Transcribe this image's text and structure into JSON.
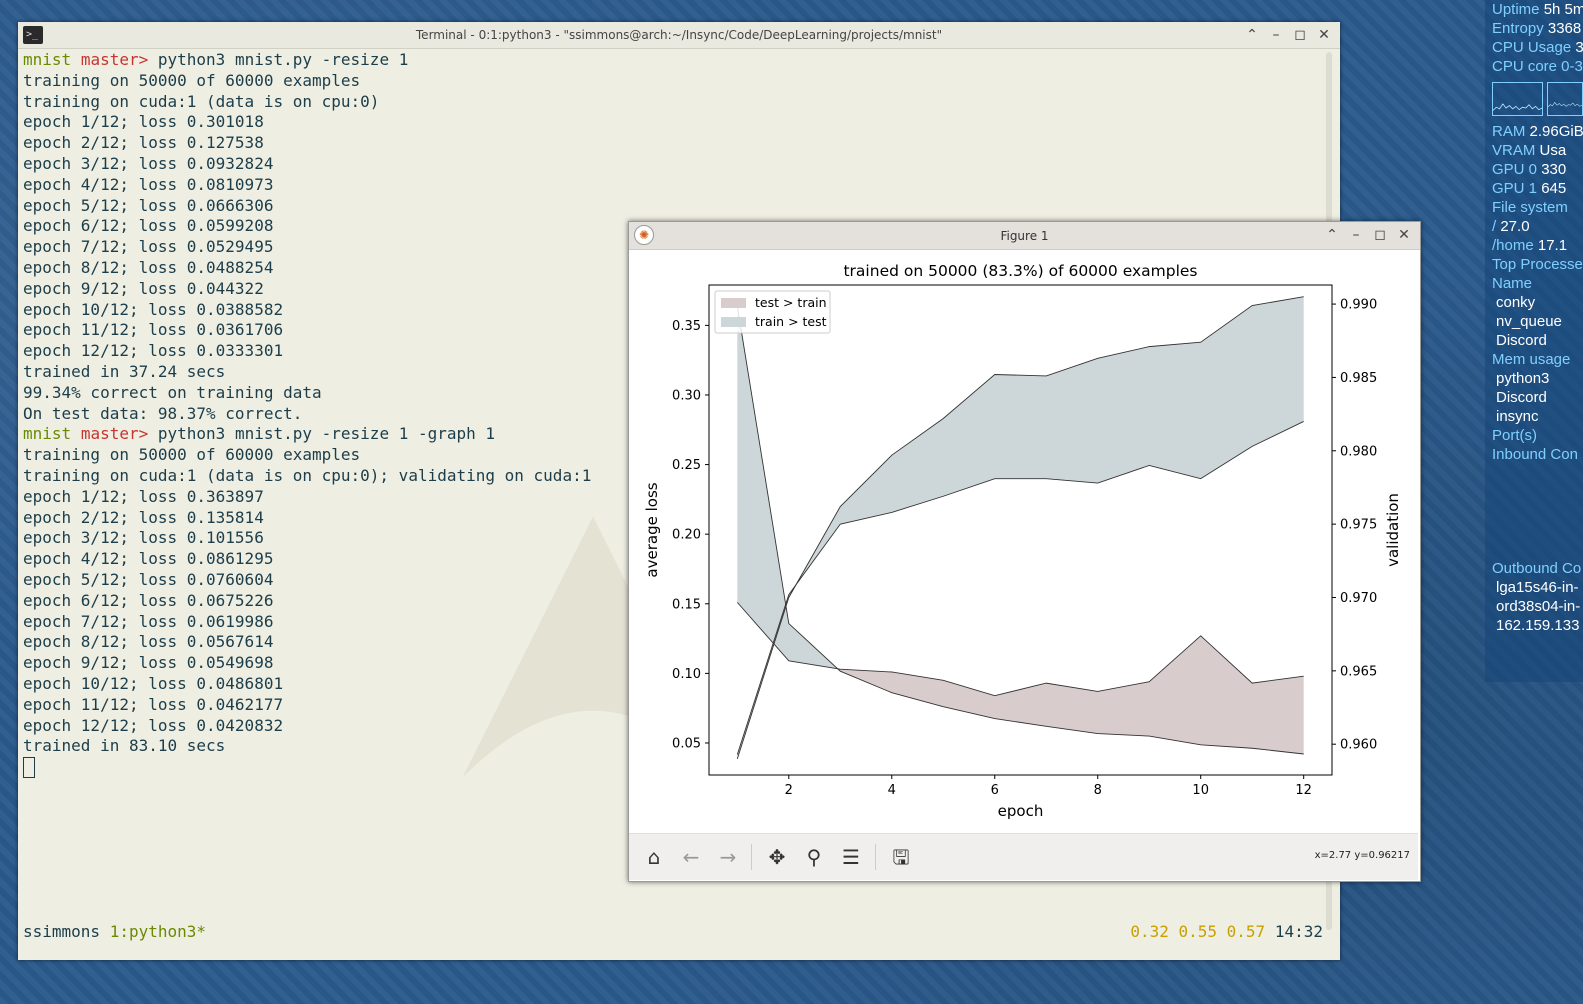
{
  "terminal": {
    "title": "Terminal - 0:1:python3 - \"ssimmons@arch:~/Insync/Code/DeepLearning/projects/mnist\"",
    "icon": "terminal-icon",
    "lines": [
      {
        "type": "prompt",
        "dir": "mnist",
        "branch": "master>",
        "cmd": " python3 mnist.py -resize 1"
      },
      {
        "type": "out",
        "text": "training on 50000 of 60000 examples"
      },
      {
        "type": "out",
        "text": "training on cuda:1 (data is on cpu:0)"
      },
      {
        "type": "out",
        "text": "epoch 1/12; loss 0.301018"
      },
      {
        "type": "out",
        "text": "epoch 2/12; loss 0.127538"
      },
      {
        "type": "out",
        "text": "epoch 3/12; loss 0.0932824"
      },
      {
        "type": "out",
        "text": "epoch 4/12; loss 0.0810973"
      },
      {
        "type": "out",
        "text": "epoch 5/12; loss 0.0666306"
      },
      {
        "type": "out",
        "text": "epoch 6/12; loss 0.0599208"
      },
      {
        "type": "out",
        "text": "epoch 7/12; loss 0.0529495"
      },
      {
        "type": "out",
        "text": "epoch 8/12; loss 0.0488254"
      },
      {
        "type": "out",
        "text": "epoch 9/12; loss 0.044322"
      },
      {
        "type": "out",
        "text": "epoch 10/12; loss 0.0388582"
      },
      {
        "type": "out",
        "text": "epoch 11/12; loss 0.0361706"
      },
      {
        "type": "out",
        "text": "epoch 12/12; loss 0.0333301"
      },
      {
        "type": "out",
        "text": "trained in 37.24 secs"
      },
      {
        "type": "out",
        "text": "99.34% correct on training data"
      },
      {
        "type": "out",
        "text": "On test data: 98.37% correct."
      },
      {
        "type": "prompt",
        "dir": "mnist",
        "branch": "master>",
        "cmd": " python3 mnist.py -resize 1 -graph 1"
      },
      {
        "type": "out",
        "text": "training on 50000 of 60000 examples"
      },
      {
        "type": "out",
        "text": "training on cuda:1 (data is on cpu:0); validating on cuda:1"
      },
      {
        "type": "out",
        "text": "epoch 1/12; loss 0.363897"
      },
      {
        "type": "out",
        "text": "epoch 2/12; loss 0.135814"
      },
      {
        "type": "out",
        "text": "epoch 3/12; loss 0.101556"
      },
      {
        "type": "out",
        "text": "epoch 4/12; loss 0.0861295"
      },
      {
        "type": "out",
        "text": "epoch 5/12; loss 0.0760604"
      },
      {
        "type": "out",
        "text": "epoch 6/12; loss 0.0675226"
      },
      {
        "type": "out",
        "text": "epoch 7/12; loss 0.0619986"
      },
      {
        "type": "out",
        "text": "epoch 8/12; loss 0.0567614"
      },
      {
        "type": "out",
        "text": "epoch 9/12; loss 0.0549698"
      },
      {
        "type": "out",
        "text": "epoch 10/12; loss 0.0486801"
      },
      {
        "type": "out",
        "text": "epoch 11/12; loss 0.0462177"
      },
      {
        "type": "out",
        "text": "epoch 12/12; loss 0.0420832"
      },
      {
        "type": "out",
        "text": "trained in 83.10 secs"
      },
      {
        "type": "cursor"
      }
    ],
    "status": {
      "user": "ssimmons",
      "session": "1:python3*",
      "load": "0.32 0.55 0.57",
      "time": "14:32"
    }
  },
  "conky": {
    "rows": [
      {
        "k": "Uptime",
        "v": "5h 5m"
      },
      {
        "k": "Entropy",
        "v": "3368"
      },
      {
        "k": "CPU Usage",
        "v": "3"
      },
      {
        "k": "CPU core 0-3",
        "v": ""
      },
      {
        "graphs": true
      },
      {
        "k": "RAM",
        "v": "2.96GiB"
      },
      {
        "k": "VRAM",
        "v": "Usa"
      },
      {
        "k": "GPU 0",
        "v": "330"
      },
      {
        "k": "GPU 1",
        "v": "645"
      },
      {
        "k": "File system",
        "v": ""
      },
      {
        "k": "/",
        "v": "27.0"
      },
      {
        "k": "/home",
        "v": "17.1"
      },
      {
        "k": "Top Processes",
        "v": ""
      },
      {
        "k": "Name",
        "v": ""
      },
      {
        "sub": "conky"
      },
      {
        "sub": "nv_queue"
      },
      {
        "sub": "Discord"
      },
      {
        "k": "Mem usage",
        "v": ""
      },
      {
        "sub": "python3"
      },
      {
        "sub": "Discord"
      },
      {
        "sub": "insync"
      },
      {
        "k": "Port(s)",
        "v": ""
      },
      {
        "k": "Inbound Con",
        "v": ""
      },
      {
        "blank": true
      },
      {
        "blank": true
      },
      {
        "blank": true
      },
      {
        "blank": true
      },
      {
        "blank": true
      },
      {
        "k": "Outbound Co",
        "v": ""
      },
      {
        "sub": "lga15s46-in-"
      },
      {
        "sub": "ord38s04-in-"
      },
      {
        "sub": "162.159.133"
      }
    ]
  },
  "figure": {
    "title": "Figure 1",
    "coords": "x=2.77 y=0.96217",
    "toolbar": [
      "home-icon",
      "back-icon",
      "forward-icon",
      "pan-icon",
      "zoom-icon",
      "configure-subplots-icon",
      "save-icon"
    ]
  },
  "colors": {
    "test_gt_train": "#d8cccc",
    "train_gt_test": "#cdd6d9",
    "prompt_dir": "#6a8a00",
    "prompt_branch": "#c8342f",
    "conky_key": "#7fd0ff"
  },
  "chart_data": {
    "type": "area",
    "title": "trained on 50000 (83.3%) of 60000 examples",
    "xlabel": "epoch",
    "ylabel": "average loss",
    "y2label": "validation",
    "xlim": [
      0.45,
      12.55
    ],
    "ylim": [
      0.027,
      0.379
    ],
    "y2lim": [
      0.9579,
      0.9913
    ],
    "xticks": [
      2,
      4,
      6,
      8,
      10,
      12
    ],
    "yticks": [
      0.05,
      0.1,
      0.15,
      0.2,
      0.25,
      0.3,
      0.35
    ],
    "y2ticks": [
      0.96,
      0.965,
      0.97,
      0.975,
      0.98,
      0.985,
      0.99
    ],
    "x": [
      1,
      2,
      3,
      4,
      5,
      6,
      7,
      8,
      9,
      10,
      11,
      12
    ],
    "loss": {
      "train": [
        0.363897,
        0.135814,
        0.101556,
        0.0861295,
        0.0760604,
        0.0675226,
        0.0619986,
        0.0567614,
        0.0549698,
        0.0486801,
        0.0462177,
        0.0420832
      ],
      "test": [
        0.151,
        0.109,
        0.103,
        0.101,
        0.095,
        0.084,
        0.093,
        0.087,
        0.094,
        0.127,
        0.093,
        0.098
      ]
    },
    "validation": {
      "train": [
        0.959,
        0.97,
        0.9762,
        0.9797,
        0.9822,
        0.9852,
        0.9851,
        0.9863,
        0.9871,
        0.9874,
        0.9899,
        0.9905
      ],
      "test": [
        0.9593,
        0.9702,
        0.975,
        0.9758,
        0.9769,
        0.9781,
        0.9781,
        0.9778,
        0.979,
        0.9781,
        0.9803,
        0.982
      ]
    },
    "legend": [
      "test > train",
      "train > test"
    ],
    "legend_position": "top-left",
    "grid": false
  }
}
